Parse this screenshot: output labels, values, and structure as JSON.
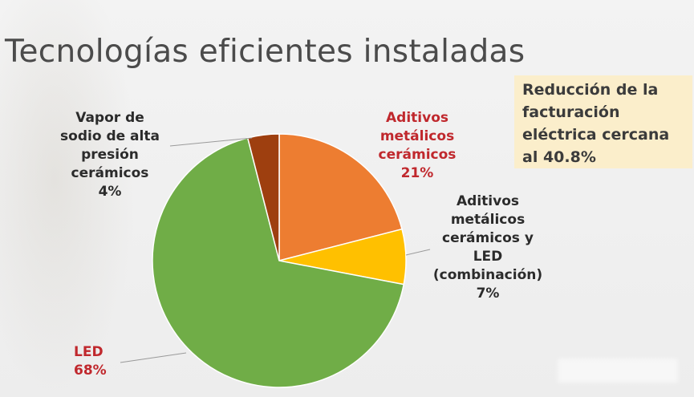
{
  "title": "Tecnologías eficientes instaladas",
  "note": {
    "lines": [
      "Reducción de la",
      "facturación",
      "eléctrica cercana",
      "al 40.8%"
    ]
  },
  "chart_data": {
    "type": "pie",
    "slices": [
      {
        "label_lines": [
          "Aditivos",
          "metálicos",
          "cerámicos"
        ],
        "pct_text": "21%",
        "value": 21,
        "color": "#ed7d31",
        "label_color": "#c0282d"
      },
      {
        "label_lines": [
          "Aditivos",
          "metálicos",
          "cerámicos y",
          "LED",
          "(combinación)"
        ],
        "pct_text": "7%",
        "value": 7,
        "color": "#ffc000",
        "label_color": "#2b2b2b"
      },
      {
        "label_lines": [
          "LED"
        ],
        "pct_text": "68%",
        "value": 68,
        "color": "#70ad47",
        "label_color": "#c0282d"
      },
      {
        "label_lines": [
          "Vapor de",
          "sodio de alta",
          "presión",
          "cerámicos"
        ],
        "pct_text": "4%",
        "value": 4,
        "color": "#9e3f0f",
        "label_color": "#2b2b2b"
      }
    ]
  }
}
